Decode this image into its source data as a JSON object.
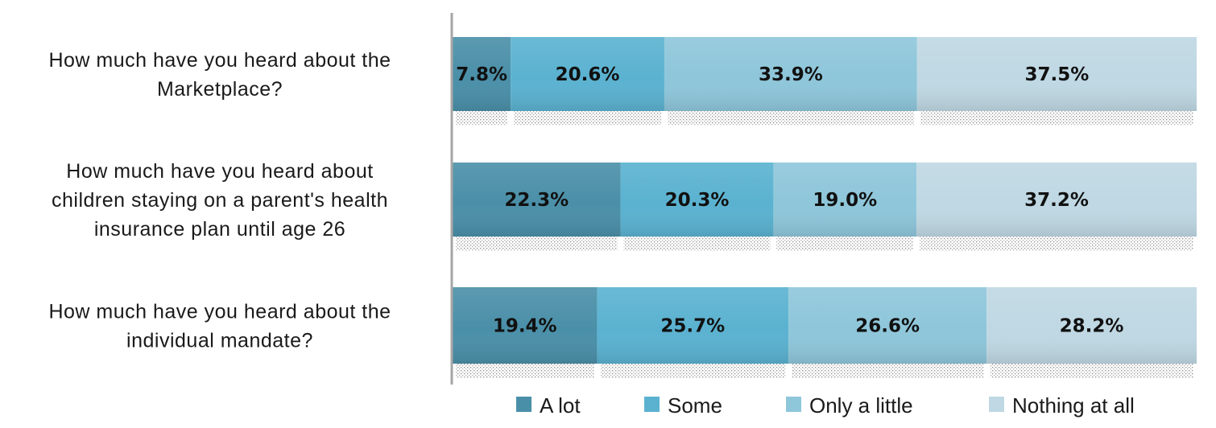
{
  "chart_data": {
    "type": "bar",
    "orientation": "horizontal",
    "stacked": true,
    "percent_stacked": true,
    "categories": [
      [
        "How much have you heard about the",
        "Marketplace?"
      ],
      [
        "How much have you heard about",
        "children staying on a parent's health",
        "insurance plan until age 26"
      ],
      [
        "How much have you heard about the",
        "individual mandate?"
      ]
    ],
    "series": [
      {
        "name": "A lot",
        "color": "#4a8fa8",
        "values": [
          7.8,
          22.3,
          19.4
        ],
        "labels": [
          "7.8%",
          "22.3%",
          "19.4%"
        ]
      },
      {
        "name": "Some",
        "color": "#5ab2d0",
        "values": [
          20.6,
          20.3,
          25.7
        ],
        "labels": [
          "20.6%",
          "20.3%",
          "25.7%"
        ]
      },
      {
        "name": "Only a little",
        "color": "#8ec6da",
        "values": [
          33.9,
          19.0,
          26.6
        ],
        "labels": [
          "33.9%",
          "19.0%",
          "26.6%"
        ]
      },
      {
        "name": "Nothing at all",
        "color": "#bfd8e3",
        "values": [
          37.5,
          37.2,
          28.2
        ],
        "labels": [
          "37.5%",
          "37.2%",
          "28.2%"
        ]
      }
    ],
    "xlim": [
      0,
      100
    ],
    "grid": false,
    "legend_position": "bottom"
  }
}
